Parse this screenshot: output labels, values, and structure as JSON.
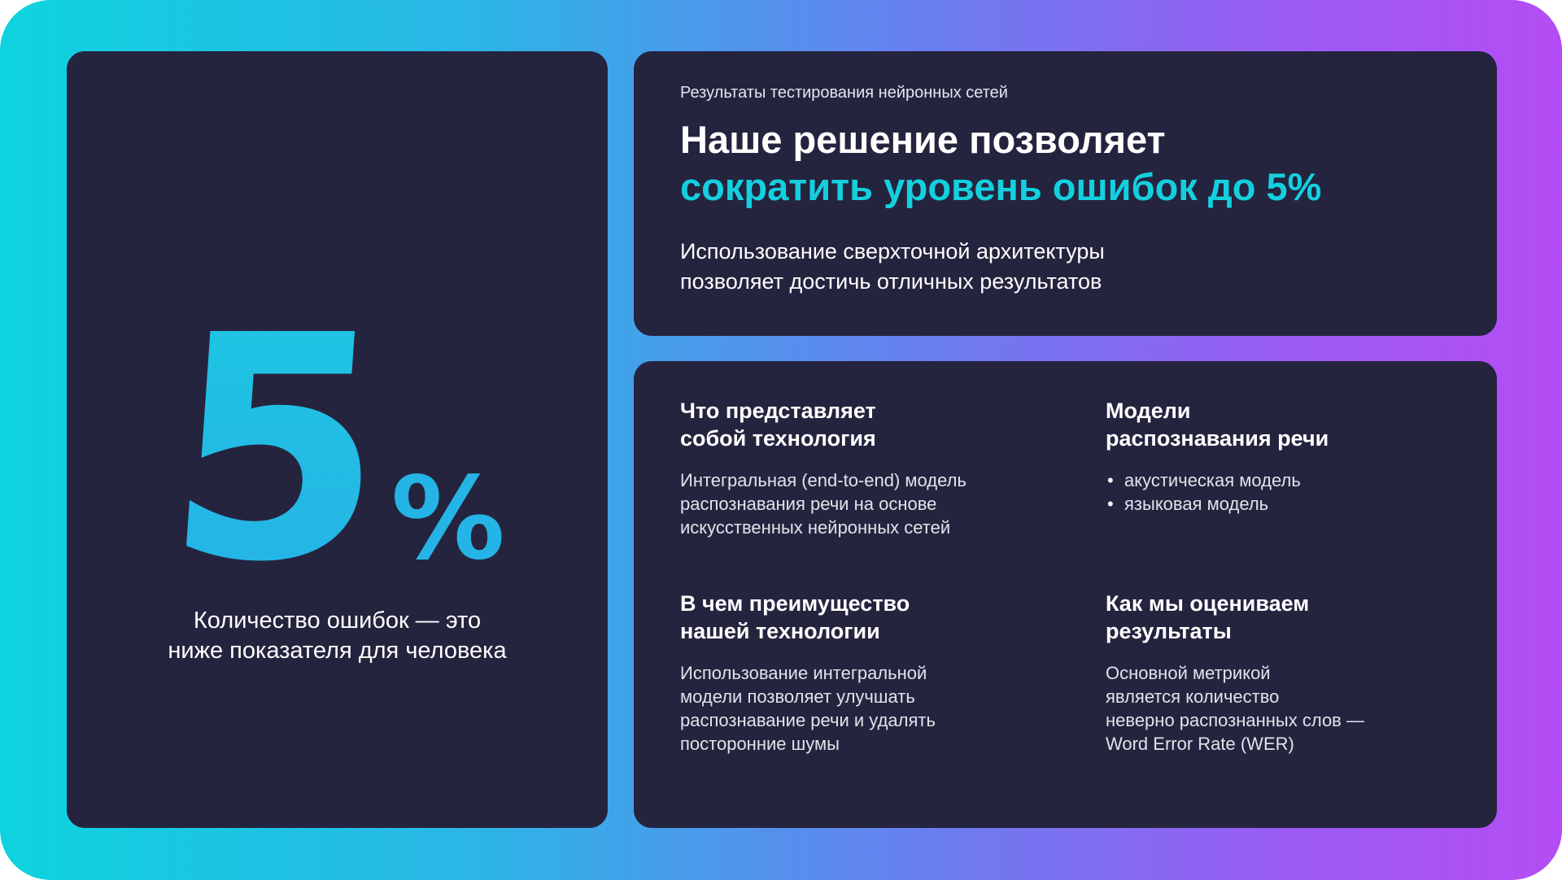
{
  "left_card": {
    "big_number": "5",
    "big_unit": "%",
    "caption_line1": "Количество ошибок — это",
    "caption_line2": "ниже показателя для человека"
  },
  "top_card": {
    "eyebrow": "Результаты тестирования нейронных сетей",
    "headline_line1": "Наше решение позволяет",
    "headline_accent": "сократить уровень ошибок до 5%",
    "subtext_line1": "Использование сверхточной архитектуры",
    "subtext_line2": "позволяет достичь отличных результатов"
  },
  "blocks": [
    {
      "title_line1": "Что представляет",
      "title_line2": "собой технология",
      "text_lines": [
        "Интегральная (end-to-end) модель",
        "распознавания речи на основе",
        "искусственных нейронных сетей"
      ]
    },
    {
      "title_line1": "Модели",
      "title_line2": "распознавания речи",
      "bullets": [
        "акустическая модель",
        "языковая модель"
      ]
    },
    {
      "title_line1": "В чем преимущество",
      "title_line2": "нашей технологии",
      "text_lines": [
        "Использование интегральной",
        "модели позволяет улучшать",
        "распознавание речи и удалять",
        "посторонние шумы"
      ]
    },
    {
      "title_line1": "Как мы оцениваем",
      "title_line2": "результаты",
      "text_lines": [
        "Основной метрикой",
        "является количество",
        "неверно распознанных слов —",
        "Word Error Rate (WER)"
      ]
    }
  ],
  "colors": {
    "card": "#25243f",
    "accent_cyan": "#13d0df",
    "gradient_start": "#0ed3df",
    "gradient_end": "#b44cf4"
  }
}
